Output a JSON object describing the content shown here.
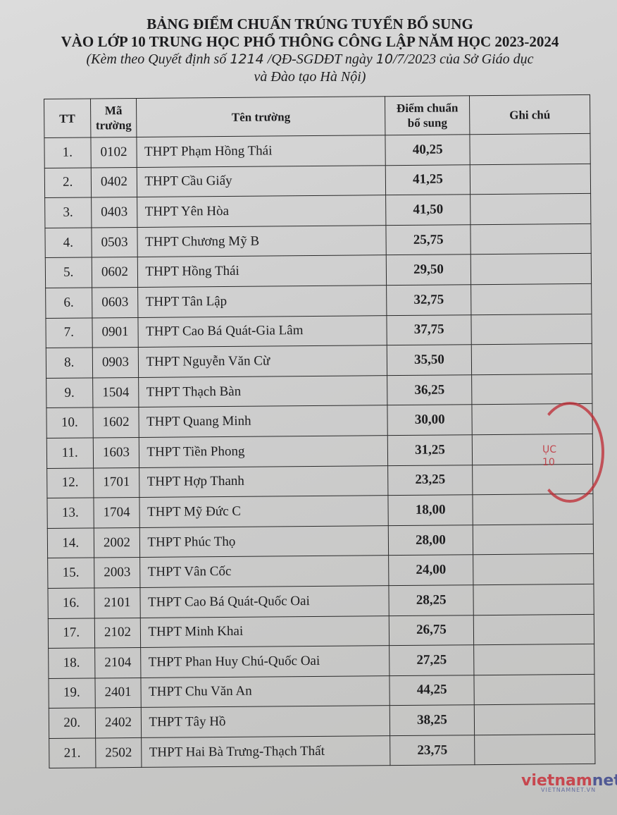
{
  "header": {
    "title_line1": "BẢNG ĐIỂM CHUẨN TRÚNG TUYỂN BỔ SUNG",
    "title_line2": "VÀO LỚP 10 TRUNG HỌC PHỔ THÔNG CÔNG LẬP NĂM HỌC 2023-2024",
    "subtitle_pre": "(Kèm theo Quyết định số ",
    "decision_number": "1214",
    "subtitle_mid": " /QĐ-SGDĐT ngày ",
    "day": "10",
    "subtitle_post": "/7/2023 của Sở Giáo dục",
    "subtitle_line2": "và Đào tạo Hà Nội)"
  },
  "table": {
    "headers": {
      "tt": "TT",
      "ma": "Mã trường",
      "ten": "Tên trường",
      "diem": "Điểm chuẩn bổ sung",
      "ghichu": "Ghi chú"
    },
    "rows": [
      {
        "tt": "1.",
        "ma": "0102",
        "ten": "THPT Phạm Hồng Thái",
        "diem": "40,25"
      },
      {
        "tt": "2.",
        "ma": "0402",
        "ten": "THPT Cầu Giấy",
        "diem": "41,25"
      },
      {
        "tt": "3.",
        "ma": "0403",
        "ten": "THPT Yên Hòa",
        "diem": "41,50"
      },
      {
        "tt": "4.",
        "ma": "0503",
        "ten": "THPT Chương Mỹ B",
        "diem": "25,75"
      },
      {
        "tt": "5.",
        "ma": "0602",
        "ten": "THPT Hồng Thái",
        "diem": "29,50"
      },
      {
        "tt": "6.",
        "ma": "0603",
        "ten": "THPT Tân Lập",
        "diem": "32,75"
      },
      {
        "tt": "7.",
        "ma": "0901",
        "ten": "THPT Cao Bá Quát-Gia Lâm",
        "diem": "37,75"
      },
      {
        "tt": "8.",
        "ma": "0903",
        "ten": "THPT Nguyễn Văn Cừ",
        "diem": "35,50"
      },
      {
        "tt": "9.",
        "ma": "1504",
        "ten": "THPT Thạch Bàn",
        "diem": "36,25"
      },
      {
        "tt": "10.",
        "ma": "1602",
        "ten": "THPT Quang Minh",
        "diem": "30,00"
      },
      {
        "tt": "11.",
        "ma": "1603",
        "ten": "THPT Tiền Phong",
        "diem": "31,25"
      },
      {
        "tt": "12.",
        "ma": "1701",
        "ten": "THPT Hợp Thanh",
        "diem": "23,25"
      },
      {
        "tt": "13.",
        "ma": "1704",
        "ten": "THPT Mỹ Đức C",
        "diem": "18,00"
      },
      {
        "tt": "14.",
        "ma": "2002",
        "ten": "THPT Phúc Thọ",
        "diem": "28,00"
      },
      {
        "tt": "15.",
        "ma": "2003",
        "ten": "THPT Vân Cốc",
        "diem": "24,00"
      },
      {
        "tt": "16.",
        "ma": "2101",
        "ten": "THPT Cao Bá Quát-Quốc Oai",
        "diem": "28,25"
      },
      {
        "tt": "17.",
        "ma": "2102",
        "ten": "THPT Minh Khai",
        "diem": "26,75"
      },
      {
        "tt": "18.",
        "ma": "2104",
        "ten": "THPT Phan Huy Chú-Quốc Oai",
        "diem": "27,25"
      },
      {
        "tt": "19.",
        "ma": "2401",
        "ten": "THPT Chu Văn An",
        "diem": "44,25"
      },
      {
        "tt": "20.",
        "ma": "2402",
        "ten": "THPT Tây Hồ",
        "diem": "38,25"
      },
      {
        "tt": "21.",
        "ma": "2502",
        "ten": "THPT Hai Bà Trưng-Thạch Thất",
        "diem": "23,75"
      }
    ]
  },
  "stamp": {
    "text": "ỤC\n10"
  },
  "watermark": {
    "brand_red": "vietnam",
    "brand_blue": "net",
    "domain": "VIETNAMNET.VN"
  }
}
